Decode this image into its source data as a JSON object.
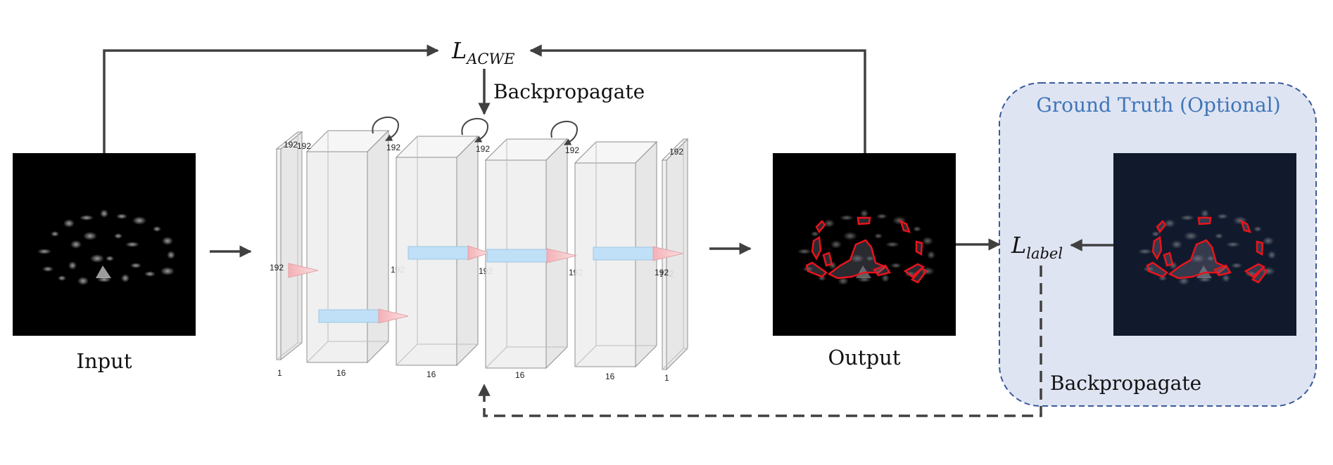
{
  "labels": {
    "input": "Input",
    "output": "Output",
    "backprop_top": "Backpropagate",
    "backprop_bottom": "Backpropagate",
    "ground_truth": "Ground Truth (Optional)",
    "loss_acwe_main": "L",
    "loss_acwe_sub": "ACWE",
    "loss_label_main": "L",
    "loss_label_sub": "label"
  },
  "network": {
    "layers": [
      {
        "kind": "slice",
        "top": "192",
        "side": "192",
        "depth": "1"
      },
      {
        "kind": "block",
        "top": "192",
        "side": "192",
        "depth": "16"
      },
      {
        "kind": "block",
        "top": "192",
        "side": "192",
        "depth": "16"
      },
      {
        "kind": "block",
        "top": "192",
        "side": "192",
        "depth": "16"
      },
      {
        "kind": "block",
        "top": "192",
        "side": "192",
        "depth": "16"
      },
      {
        "kind": "slice",
        "top": "192",
        "side": "192",
        "depth": "1"
      }
    ]
  },
  "colors": {
    "arrow": "#404040",
    "gt_panel_fill": "#dfe4f3",
    "gt_panel_border": "#3a5a9a",
    "gt_title": "#3e75b8",
    "contour": "#e8141c",
    "kernel_blue": "#bfe0f7",
    "kernel_red": "#f6c5c8"
  }
}
